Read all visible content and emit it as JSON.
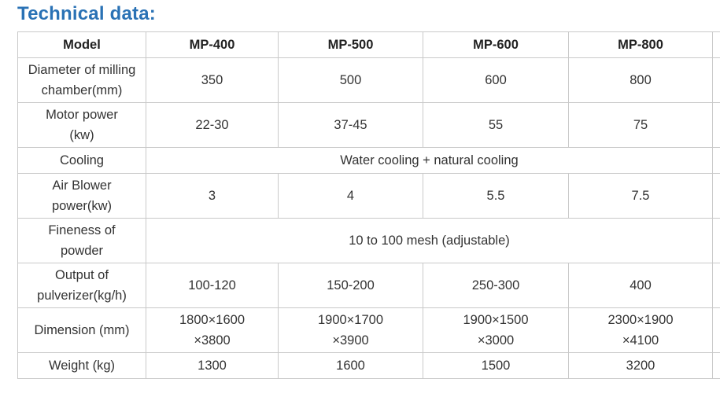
{
  "title": "Technical data:",
  "table": {
    "header": {
      "label": "Model",
      "models": [
        "MP-400",
        "MP-500",
        "MP-600",
        "MP-800"
      ]
    },
    "rows": [
      {
        "label_line1": "Diameter of milling",
        "label_line2": "chamber(mm)",
        "values": [
          "350",
          "500",
          "600",
          "800"
        ]
      },
      {
        "label_line1": "Motor power",
        "label_line2": "(kw)",
        "values": [
          "22-30",
          "37-45",
          "55",
          "75"
        ]
      },
      {
        "label": "Cooling",
        "merged_value": "Water cooling + natural cooling"
      },
      {
        "label_line1": "Air Blower",
        "label_line2": "power(kw)",
        "values": [
          "3",
          "4",
          "5.5",
          "7.5"
        ]
      },
      {
        "label_line1": "Fineness of",
        "label_line2": "powder",
        "merged_value": "10 to 100 mesh (adjustable)"
      },
      {
        "label_line1": "Output of",
        "label_line2": "pulverizer(kg/h)",
        "values": [
          "100-120",
          "150-200",
          "250-300",
          "400"
        ]
      },
      {
        "label": "Dimension (mm)",
        "values_line1": [
          "1800×1600",
          "1900×1700",
          "1900×1500",
          "2300×1900"
        ],
        "values_line2": [
          "×3800",
          "×3900",
          "×3000",
          "×4100"
        ]
      },
      {
        "label": "Weight (kg)",
        "values": [
          "1300",
          "1600",
          "1500",
          "3200"
        ]
      }
    ]
  }
}
